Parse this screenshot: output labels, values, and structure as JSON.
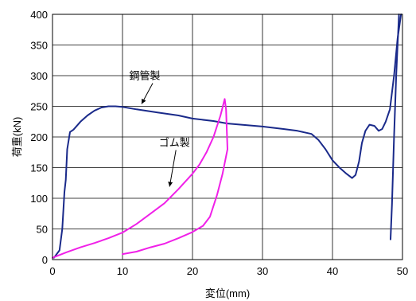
{
  "chart_data": {
    "type": "line",
    "xlabel": "変位(mm)",
    "ylabel": "荷重(kN)",
    "xlim": [
      0,
      50
    ],
    "ylim": [
      0,
      400
    ],
    "x_ticks": [
      "0",
      "10",
      "20",
      "30",
      "40",
      "50"
    ],
    "y_ticks": [
      "0",
      "50",
      "100",
      "150",
      "200",
      "250",
      "300",
      "350",
      "400"
    ],
    "grid": true,
    "series": [
      {
        "name": "鋼管製",
        "color": "#1a2a8a",
        "points": [
          [
            0.2,
            3
          ],
          [
            1.0,
            15
          ],
          [
            1.4,
            50
          ],
          [
            1.7,
            110
          ],
          [
            1.9,
            130
          ],
          [
            2.1,
            180
          ],
          [
            2.5,
            208
          ],
          [
            3.0,
            212
          ],
          [
            4.0,
            225
          ],
          [
            5.0,
            235
          ],
          [
            6.0,
            243
          ],
          [
            7.0,
            248
          ],
          [
            8.0,
            250
          ],
          [
            9.0,
            250
          ],
          [
            10.0,
            249
          ],
          [
            12.0,
            245
          ],
          [
            15.0,
            240
          ],
          [
            18.0,
            235
          ],
          [
            20.0,
            230
          ],
          [
            23.0,
            226
          ],
          [
            25.0,
            222
          ],
          [
            28.0,
            219
          ],
          [
            30.0,
            217
          ],
          [
            33.0,
            213
          ],
          [
            35.0,
            210
          ],
          [
            37.0,
            205
          ],
          [
            38.0,
            195
          ],
          [
            39.0,
            180
          ],
          [
            40.0,
            162
          ],
          [
            41.0,
            150
          ],
          [
            42.0,
            140
          ],
          [
            42.8,
            133
          ],
          [
            43.3,
            138
          ],
          [
            43.8,
            160
          ],
          [
            44.2,
            190
          ],
          [
            44.7,
            210
          ],
          [
            45.3,
            220
          ],
          [
            46.0,
            218
          ],
          [
            46.6,
            210
          ],
          [
            47.1,
            213
          ],
          [
            47.6,
            225
          ],
          [
            48.2,
            245
          ],
          [
            48.8,
            300
          ],
          [
            49.3,
            360
          ],
          [
            49.8,
            400
          ]
        ]
      },
      {
        "name": "",
        "color": "#1a2a8a",
        "points": [
          [
            48.3,
            33
          ],
          [
            48.5,
            90
          ],
          [
            48.8,
            200
          ],
          [
            49.1,
            300
          ],
          [
            49.5,
            400
          ]
        ]
      },
      {
        "name": "ゴム製",
        "color": "#f020e8",
        "points": [
          [
            0,
            3
          ],
          [
            2,
            12
          ],
          [
            4,
            20
          ],
          [
            6,
            27
          ],
          [
            8,
            35
          ],
          [
            10,
            44
          ],
          [
            12,
            58
          ],
          [
            14,
            75
          ],
          [
            16,
            92
          ],
          [
            18,
            115
          ],
          [
            20,
            140
          ],
          [
            21,
            155
          ],
          [
            22,
            175
          ],
          [
            23,
            200
          ],
          [
            24,
            235
          ],
          [
            24.6,
            262
          ],
          [
            24.8,
            245
          ],
          [
            25.0,
            180
          ],
          [
            24.3,
            140
          ],
          [
            23.5,
            105
          ],
          [
            22.5,
            70
          ],
          [
            21.5,
            55
          ],
          [
            20.0,
            45
          ],
          [
            18.0,
            35
          ],
          [
            16.0,
            26
          ],
          [
            14.0,
            20
          ],
          [
            12.0,
            13
          ],
          [
            10.0,
            9
          ]
        ]
      }
    ],
    "annotations": [
      {
        "text": "鋼管製",
        "series": "鋼管製",
        "point": [
          12.5,
          250
        ]
      },
      {
        "text": "ゴム製",
        "series": "ゴム製",
        "point": [
          16.5,
          115
        ]
      }
    ]
  }
}
